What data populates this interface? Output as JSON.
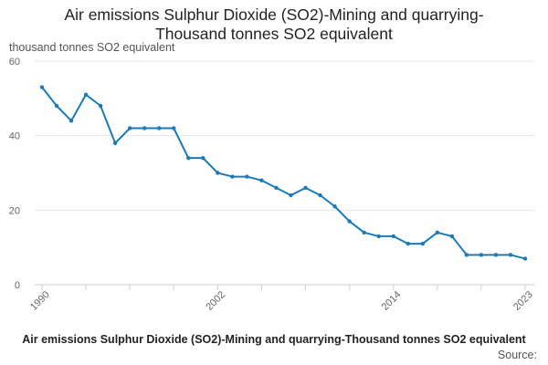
{
  "chart_data": {
    "type": "line",
    "title": "Air emissions Sulphur Dioxide (SO2)-Mining and quarrying-Thousand tonnes SO2 equivalent",
    "subtitle": "thousand tonnes SO2 equivalent",
    "xlabel": "",
    "ylabel": "thousand tonnes SO2 equivalent",
    "ylim": [
      0,
      60
    ],
    "yticks": [
      0,
      20,
      40,
      60
    ],
    "xticks": [
      "1990",
      "2002",
      "2014",
      "2023"
    ],
    "grid": true,
    "legend_position": "bottom",
    "x": [
      1990,
      1991,
      1992,
      1993,
      1994,
      1995,
      1996,
      1997,
      1998,
      1999,
      2000,
      2001,
      2002,
      2003,
      2004,
      2005,
      2006,
      2007,
      2008,
      2009,
      2010,
      2011,
      2012,
      2013,
      2014,
      2015,
      2016,
      2017,
      2018,
      2019,
      2020,
      2021,
      2022,
      2023
    ],
    "series": [
      {
        "name": "Air emissions Sulphur Dioxide (SO2)-Mining and quarrying-Thousand tonnes SO2 equivalent",
        "color": "#1a7ab8",
        "values": [
          53,
          48,
          44,
          51,
          48,
          38,
          42,
          42,
          42,
          42,
          34,
          34,
          30,
          29,
          29,
          28,
          26,
          24,
          26,
          24,
          21,
          17,
          14,
          13,
          13,
          11,
          11,
          14,
          13,
          8,
          8,
          8,
          8,
          7
        ]
      }
    ],
    "source": "Source:"
  }
}
